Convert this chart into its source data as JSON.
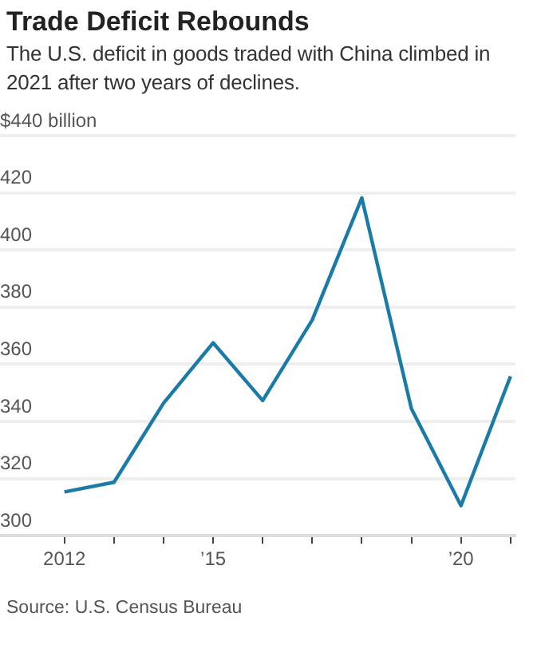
{
  "chart_data": {
    "type": "line",
    "title": "Trade Deficit Rebounds",
    "subtitle": "The U.S. deficit in goods traded with China climbed in 2021 after two years of declines.",
    "annotations": [
      "Source: U.S. Census Bureau"
    ],
    "x": [
      2012,
      2013,
      2014,
      2015,
      2016,
      2017,
      2018,
      2019,
      2020,
      2021
    ],
    "series": [
      {
        "color": "#1a7aa8",
        "values": [
          315.3,
          318.7,
          346.4,
          367.5,
          347.3,
          375.5,
          418.2,
          344.5,
          310.5,
          355.8
        ]
      }
    ],
    "xlim": [
      2010.7,
      2021.1
    ],
    "xticks": [
      2012,
      {
        "value": 2013,
        "label": null
      },
      {
        "value": 2014,
        "label": null
      },
      {
        "value": 2015,
        "label": "’15"
      },
      {
        "value": 2016,
        "label": null
      },
      {
        "value": 2017,
        "label": null
      },
      {
        "value": 2018,
        "label": null
      },
      {
        "value": 2019,
        "label": null
      },
      {
        "value": 2020,
        "label": "’20"
      },
      {
        "value": 2021,
        "label": null
      }
    ],
    "ylim": [
      300,
      440
    ],
    "yticks": [
      300,
      320,
      340,
      360,
      380,
      400,
      420,
      {
        "value": 440,
        "label": "$440 billion"
      }
    ],
    "grid": "y",
    "legend": false,
    "marker": "none",
    "line_style": "solid"
  }
}
